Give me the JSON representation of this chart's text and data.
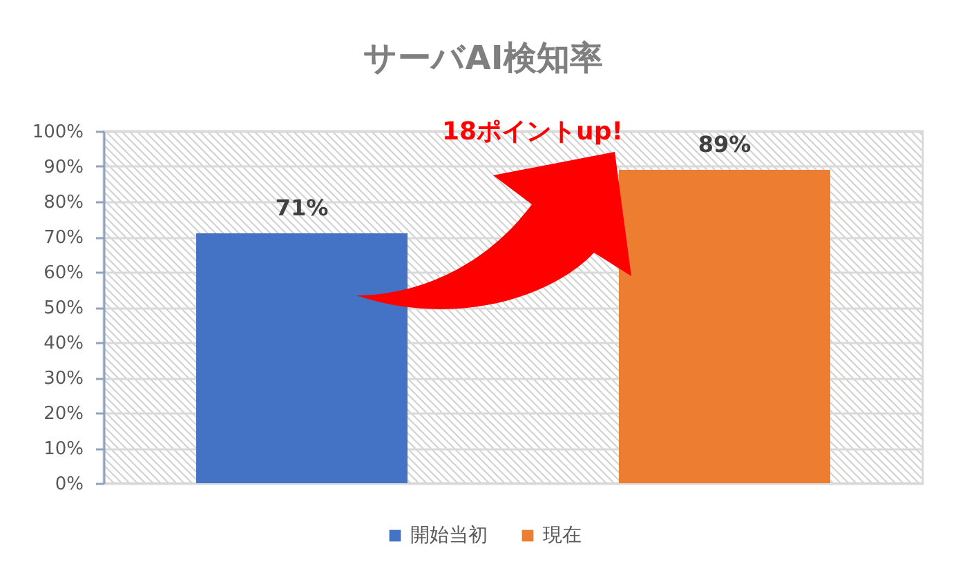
{
  "chart_data": {
    "type": "bar",
    "title": "サーバAI検知率",
    "categories": [
      null
    ],
    "series": [
      {
        "name": "開始当初",
        "color": "#4472c4",
        "values": [
          71
        ],
        "value_labels": [
          "71%"
        ]
      },
      {
        "name": "現在",
        "color": "#ed7d31",
        "values": [
          89
        ],
        "value_labels": [
          "89%"
        ]
      }
    ],
    "ylim": [
      0,
      100
    ],
    "yticks": [
      {
        "value": 0,
        "label": "0%"
      },
      {
        "value": 10,
        "label": "10%"
      },
      {
        "value": 20,
        "label": "20%"
      },
      {
        "value": 30,
        "label": "30%"
      },
      {
        "value": 40,
        "label": "40%"
      },
      {
        "value": 50,
        "label": "50%"
      },
      {
        "value": 60,
        "label": "60%"
      },
      {
        "value": 70,
        "label": "70%"
      },
      {
        "value": 80,
        "label": "80%"
      },
      {
        "value": 90,
        "label": "90%"
      },
      {
        "value": 100,
        "label": "100%"
      }
    ],
    "grid": "y",
    "legend": "bottom",
    "annotations": [
      "18ポイントup!"
    ]
  }
}
